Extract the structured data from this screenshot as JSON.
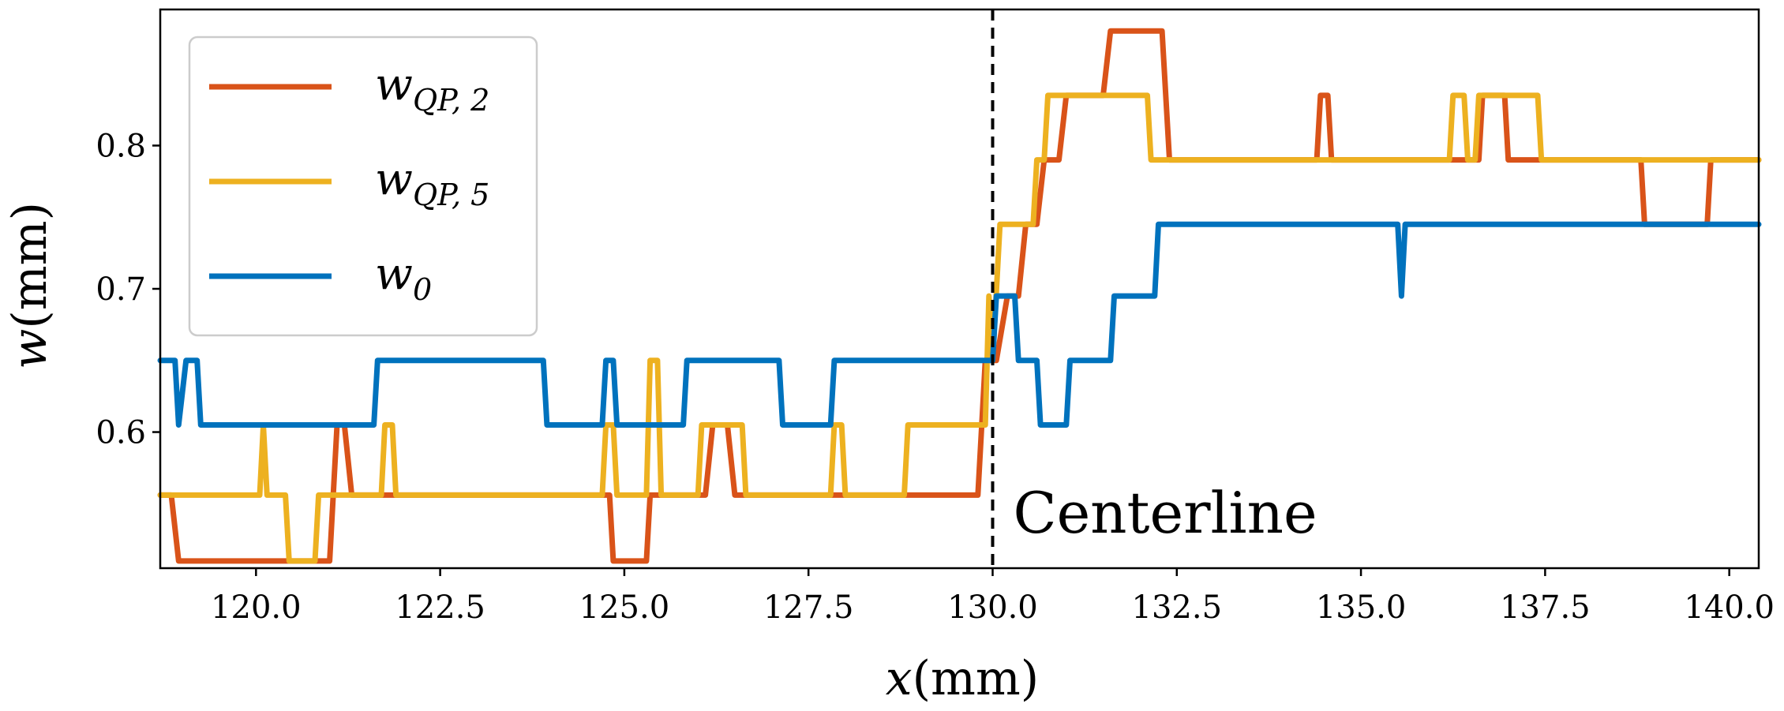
{
  "chart_data": {
    "type": "line",
    "title": "",
    "xlabel": {
      "var": "x",
      "unit": "(mm)"
    },
    "ylabel": {
      "var": "w",
      "unit": "(mm)"
    },
    "xlim": [
      118.7,
      140.4
    ],
    "ylim": [
      0.505,
      0.895
    ],
    "xticks": [
      120.0,
      122.5,
      125.0,
      127.5,
      130.0,
      132.5,
      135.0,
      137.5,
      140.0
    ],
    "xtick_labels": [
      "120.0",
      "122.5",
      "125.0",
      "127.5",
      "130.0",
      "132.5",
      "135.0",
      "137.5",
      "140.0"
    ],
    "yticks": [
      0.6,
      0.7,
      0.8
    ],
    "ytick_labels": [
      "0.6",
      "0.7",
      "0.8"
    ],
    "grid": false,
    "legend_position": "top-left",
    "annotation": {
      "text": "Centerline",
      "x": 130.0
    },
    "series": [
      {
        "key": "wqp2",
        "name": "w_{QP,2}",
        "base": "w",
        "sub": "QP, 2",
        "color": "#d95319",
        "points": [
          [
            118.7,
            0.556
          ],
          [
            118.85,
            0.556
          ],
          [
            118.95,
            0.51
          ],
          [
            121.0,
            0.51
          ],
          [
            121.1,
            0.605
          ],
          [
            121.2,
            0.605
          ],
          [
            121.3,
            0.556
          ],
          [
            124.8,
            0.556
          ],
          [
            124.85,
            0.51
          ],
          [
            125.3,
            0.51
          ],
          [
            125.35,
            0.556
          ],
          [
            126.1,
            0.556
          ],
          [
            126.2,
            0.605
          ],
          [
            126.4,
            0.605
          ],
          [
            126.5,
            0.556
          ],
          [
            129.8,
            0.556
          ],
          [
            129.9,
            0.65
          ],
          [
            130.05,
            0.65
          ],
          [
            130.2,
            0.695
          ],
          [
            130.35,
            0.695
          ],
          [
            130.45,
            0.745
          ],
          [
            130.6,
            0.745
          ],
          [
            130.7,
            0.79
          ],
          [
            130.9,
            0.79
          ],
          [
            131.0,
            0.835
          ],
          [
            131.5,
            0.835
          ],
          [
            131.6,
            0.88
          ],
          [
            132.3,
            0.88
          ],
          [
            132.4,
            0.79
          ],
          [
            134.4,
            0.79
          ],
          [
            134.45,
            0.835
          ],
          [
            134.55,
            0.835
          ],
          [
            134.6,
            0.79
          ],
          [
            136.6,
            0.79
          ],
          [
            136.65,
            0.835
          ],
          [
            136.95,
            0.835
          ],
          [
            137.0,
            0.79
          ],
          [
            138.8,
            0.79
          ],
          [
            138.85,
            0.745
          ],
          [
            139.7,
            0.745
          ],
          [
            139.75,
            0.79
          ],
          [
            140.4,
            0.79
          ]
        ]
      },
      {
        "key": "wqp5",
        "name": "w_{QP,5}",
        "base": "w",
        "sub": "QP, 5",
        "color": "#edb120",
        "points": [
          [
            118.7,
            0.556
          ],
          [
            120.05,
            0.556
          ],
          [
            120.1,
            0.605
          ],
          [
            120.15,
            0.556
          ],
          [
            120.4,
            0.556
          ],
          [
            120.45,
            0.51
          ],
          [
            120.8,
            0.51
          ],
          [
            120.85,
            0.556
          ],
          [
            121.7,
            0.556
          ],
          [
            121.75,
            0.605
          ],
          [
            121.85,
            0.605
          ],
          [
            121.9,
            0.556
          ],
          [
            124.7,
            0.556
          ],
          [
            124.75,
            0.605
          ],
          [
            124.85,
            0.605
          ],
          [
            124.9,
            0.556
          ],
          [
            125.3,
            0.556
          ],
          [
            125.35,
            0.65
          ],
          [
            125.45,
            0.65
          ],
          [
            125.5,
            0.556
          ],
          [
            126.0,
            0.556
          ],
          [
            126.05,
            0.605
          ],
          [
            126.6,
            0.605
          ],
          [
            126.65,
            0.556
          ],
          [
            127.8,
            0.556
          ],
          [
            127.85,
            0.605
          ],
          [
            127.95,
            0.605
          ],
          [
            128.0,
            0.556
          ],
          [
            128.8,
            0.556
          ],
          [
            128.85,
            0.605
          ],
          [
            129.9,
            0.605
          ],
          [
            129.95,
            0.695
          ],
          [
            130.0,
            0.65
          ],
          [
            130.1,
            0.745
          ],
          [
            130.55,
            0.745
          ],
          [
            130.6,
            0.79
          ],
          [
            130.7,
            0.79
          ],
          [
            130.75,
            0.835
          ],
          [
            132.1,
            0.835
          ],
          [
            132.15,
            0.79
          ],
          [
            136.2,
            0.79
          ],
          [
            136.25,
            0.835
          ],
          [
            136.4,
            0.835
          ],
          [
            136.45,
            0.79
          ],
          [
            136.55,
            0.79
          ],
          [
            136.6,
            0.835
          ],
          [
            137.4,
            0.835
          ],
          [
            137.45,
            0.79
          ],
          [
            140.4,
            0.79
          ]
        ]
      },
      {
        "key": "w0",
        "name": "w_0",
        "base": "w",
        "sub": "0",
        "color": "#0072bd",
        "points": [
          [
            118.7,
            0.65
          ],
          [
            118.9,
            0.65
          ],
          [
            118.95,
            0.605
          ],
          [
            119.05,
            0.65
          ],
          [
            119.2,
            0.65
          ],
          [
            119.25,
            0.605
          ],
          [
            121.6,
            0.605
          ],
          [
            121.65,
            0.65
          ],
          [
            123.9,
            0.65
          ],
          [
            123.95,
            0.605
          ],
          [
            124.7,
            0.605
          ],
          [
            124.75,
            0.65
          ],
          [
            124.85,
            0.65
          ],
          [
            124.9,
            0.605
          ],
          [
            125.8,
            0.605
          ],
          [
            125.85,
            0.65
          ],
          [
            127.1,
            0.65
          ],
          [
            127.15,
            0.605
          ],
          [
            127.8,
            0.605
          ],
          [
            127.85,
            0.65
          ],
          [
            130.0,
            0.65
          ],
          [
            130.05,
            0.695
          ],
          [
            130.3,
            0.695
          ],
          [
            130.35,
            0.65
          ],
          [
            130.6,
            0.65
          ],
          [
            130.65,
            0.605
          ],
          [
            131.0,
            0.605
          ],
          [
            131.05,
            0.65
          ],
          [
            131.6,
            0.65
          ],
          [
            131.65,
            0.695
          ],
          [
            132.2,
            0.695
          ],
          [
            132.25,
            0.745
          ],
          [
            135.5,
            0.745
          ],
          [
            135.55,
            0.695
          ],
          [
            135.6,
            0.745
          ],
          [
            140.4,
            0.745
          ]
        ]
      }
    ]
  }
}
